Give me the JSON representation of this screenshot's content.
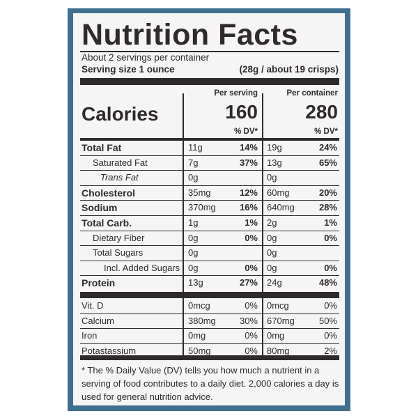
{
  "header": {
    "title": "Nutrition Facts",
    "servings": "About 2 servings per container",
    "serving_size_label": "Serving size 1 ounce",
    "serving_size_value": "(28g / about 19 crisps)"
  },
  "columns": {
    "per_serving": "Per serving",
    "per_container": "Per container",
    "dv_header": "% DV*"
  },
  "calories": {
    "label": "Calories",
    "per_serving": 160,
    "per_container": 280
  },
  "nutrients": [
    {
      "name": "Total Fat",
      "serving_amount": "11g",
      "serving_dv": "14%",
      "container_amount": "19g",
      "container_dv": "24%"
    },
    {
      "name": "Saturated Fat",
      "serving_amount": "7g",
      "serving_dv": "37%",
      "container_amount": "13g",
      "container_dv": "65%"
    },
    {
      "name": "Trans Fat",
      "serving_amount": "0g",
      "container_amount": "0g"
    },
    {
      "name": "Cholesterol",
      "serving_amount": "35mg",
      "serving_dv": "12%",
      "container_amount": "60mg",
      "container_dv": "20%"
    },
    {
      "name": "Sodium",
      "serving_amount": "370mg",
      "serving_dv": "16%",
      "container_amount": "640mg",
      "container_dv": "28%"
    },
    {
      "name": "Total Carb.",
      "serving_amount": "1g",
      "serving_dv": "1%",
      "container_amount": "2g",
      "container_dv": "1%"
    },
    {
      "name": "Dietary Fiber",
      "serving_amount": "0g",
      "serving_dv": "0%",
      "container_amount": "0g",
      "container_dv": "0%"
    },
    {
      "name": "Total Sugars",
      "serving_amount": "0g",
      "container_amount": "0g"
    },
    {
      "name": "Incl. Added Sugars",
      "serving_amount": "0g",
      "serving_dv": "0%",
      "container_amount": "0g",
      "container_dv": "0%"
    },
    {
      "name": "Protein",
      "serving_amount": "13g",
      "serving_dv": "27%",
      "container_amount": "24g",
      "container_dv": "48%"
    }
  ],
  "vitamins": [
    {
      "name": "Vit. D",
      "serving_amount": "0mcg",
      "serving_dv": "0%",
      "container_amount": "0mcg",
      "container_dv": "0%"
    },
    {
      "name": "Calcium",
      "serving_amount": "380mg",
      "serving_dv": "30%",
      "container_amount": "670mg",
      "container_dv": "50%"
    },
    {
      "name": "Iron",
      "serving_amount": "0mg",
      "serving_dv": "0%",
      "container_amount": "0mg",
      "container_dv": "0%"
    },
    {
      "name": "Potastassium",
      "serving_amount": "50mg",
      "serving_dv": "0%",
      "container_amount": "80mg",
      "container_dv": "2%"
    }
  ],
  "footnote": "* The % Daily Value (DV) tells you how much a nutrient in a serving of food contributes to a daily diet. 2,000 calories a day is used for general nutrition advice."
}
